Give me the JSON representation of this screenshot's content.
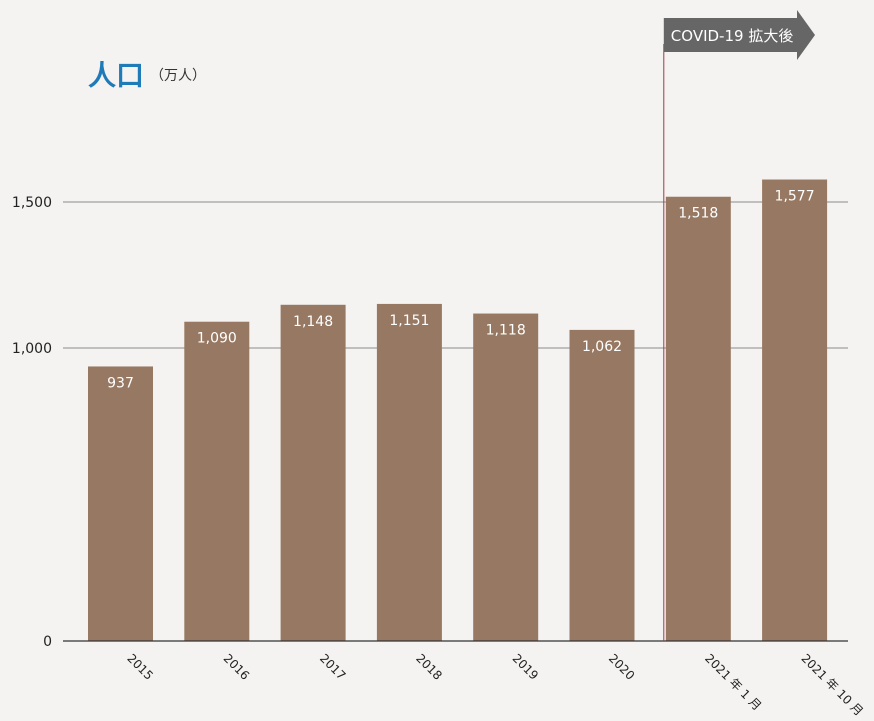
{
  "chart_data": {
    "type": "bar",
    "title": "人口",
    "unit": "（万人）",
    "categories": [
      "2015",
      "2016",
      "2017",
      "2018",
      "2019",
      "2020",
      "2021 年 1 月",
      "2021 年 10 月"
    ],
    "values": [
      937,
      1090,
      1148,
      1151,
      1118,
      1062,
      1518,
      1577
    ],
    "value_labels": [
      "937",
      "1,090",
      "1,148",
      "1,151",
      "1,118",
      "1,062",
      "1,518",
      "1,577"
    ],
    "yticks": [
      0,
      1000,
      1500
    ],
    "ytick_labels": [
      "0",
      "1,000",
      "1,500"
    ],
    "ylim": [
      0,
      1500
    ],
    "scale": "piecewise-linear: 0–1000 compressed, 1000–1500 linear",
    "grid": true,
    "annotation": {
      "text": "COVID-19 拡大後",
      "start_category_index": 6
    },
    "colors": {
      "bar": "#977862",
      "title": "#1f7ab8",
      "grid": "#8a8a8a",
      "axis": "#333333",
      "annotation_bg": "#666666",
      "annotation_line": "#9b3a48"
    }
  }
}
